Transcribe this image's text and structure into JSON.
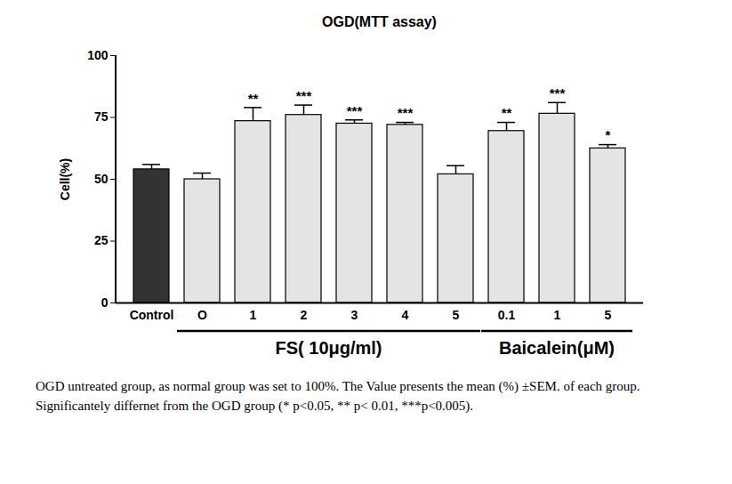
{
  "chart_data": {
    "type": "bar",
    "title": "OGD(MTT assay)",
    "y_label": "Cell(%)",
    "categories": [
      "Control",
      "O",
      "1",
      "2",
      "3",
      "4",
      "5",
      "0.1",
      "1",
      "5"
    ],
    "values": [
      54,
      50,
      73.5,
      76,
      72.5,
      72,
      52,
      69.5,
      76.5,
      62.5
    ],
    "errors": [
      2,
      2.5,
      5.5,
      4,
      1.5,
      1,
      3.5,
      3.5,
      4.5,
      1.5
    ],
    "significance": [
      null,
      null,
      "**",
      "***",
      "***",
      "***",
      null,
      "**",
      "***",
      "*"
    ],
    "colors": [
      "#333333",
      "#e4e4e4",
      "#e4e4e4",
      "#e4e4e4",
      "#e4e4e4",
      "#e4e4e4",
      "#e4e4e4",
      "#e4e4e4",
      "#e4e4e4",
      "#e4e4e4"
    ],
    "groups": [
      {
        "label": "FS( 10μg/ml)",
        "from": 1,
        "to": 6
      },
      {
        "label": "Baicalein(μM)",
        "from": 7,
        "to": 9
      }
    ],
    "ylim": [
      0,
      100
    ],
    "yticks": [
      0,
      25,
      50,
      75,
      100
    ],
    "grid": false,
    "caption": "OGD untreated group, as normal group was set to 100%. The Value presents the mean (%) ±SEM. of each group. Significantely differnet from the OGD group (* p<0.05, ** p< 0.01, ***p<0.005)."
  }
}
